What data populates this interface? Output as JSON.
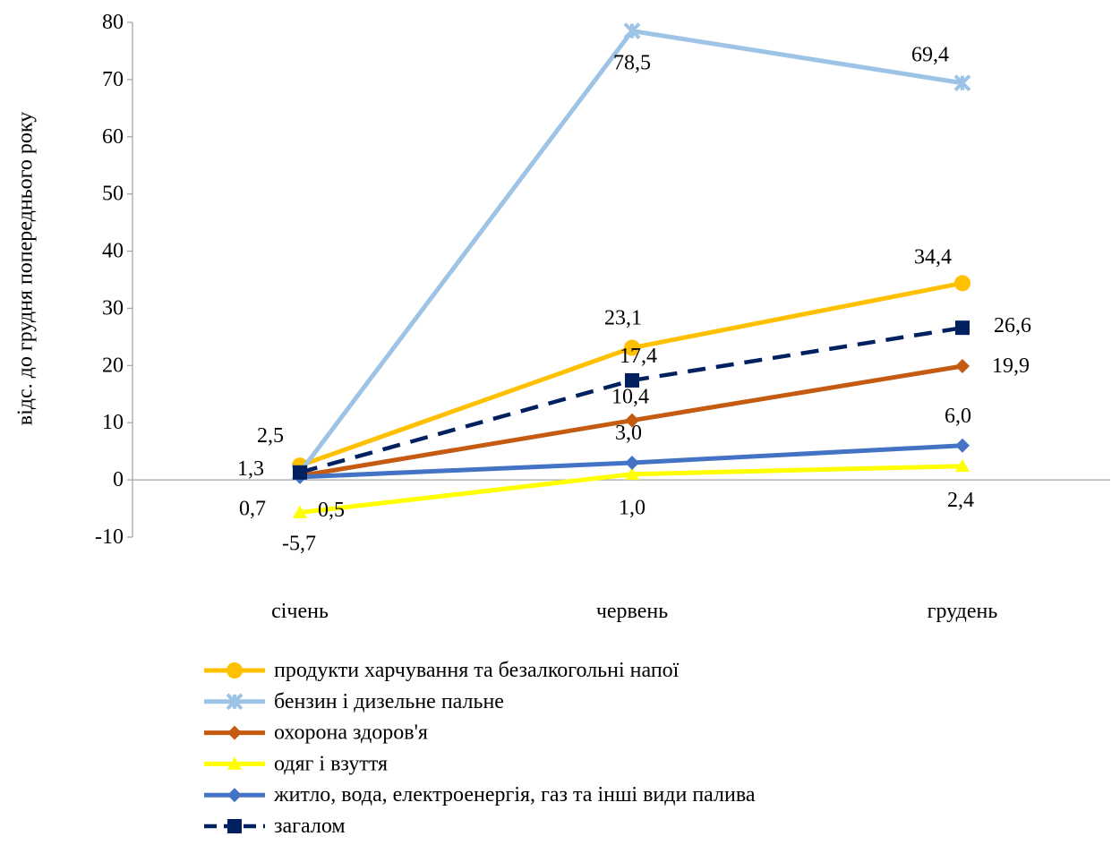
{
  "chart_data": {
    "type": "line",
    "title": "",
    "xlabel": "",
    "ylabel": "відс. до грудня попереднього року",
    "categories": [
      "січень",
      "червень",
      "грудень"
    ],
    "ylim": [
      -10,
      80
    ],
    "yticks": [
      -10,
      0,
      10,
      20,
      30,
      40,
      50,
      60,
      70,
      80
    ],
    "grid": false,
    "legend_position": "bottom",
    "series": [
      {
        "name": "продукти харчування та безалкогольні напої",
        "values": [
          2.5,
          23.1,
          34.4
        ],
        "labels": [
          "2,5",
          "23,1",
          "34,4"
        ],
        "color": "#FFC000",
        "marker": "circle",
        "dash": "solid"
      },
      {
        "name": "бензин і дизельне пальне",
        "values": [
          1.3,
          78.5,
          69.4
        ],
        "labels": [
          "1,3",
          "78,5",
          "69,4"
        ],
        "color": "#9DC3E6",
        "marker": "star",
        "dash": "solid"
      },
      {
        "name": "охорона здоров'я",
        "values": [
          0.7,
          10.4,
          19.9
        ],
        "labels": [
          "0,7",
          "10,4",
          "19,9"
        ],
        "color": "#C55A11",
        "marker": "diamond",
        "dash": "solid"
      },
      {
        "name": "одяг і взуття",
        "values": [
          -5.7,
          1.0,
          2.4
        ],
        "labels": [
          "-5,7",
          "1,0",
          "2,4"
        ],
        "color": "#FFFF00",
        "marker": "triangle",
        "dash": "solid"
      },
      {
        "name": "житло, вода, електроенергія, газ та інші види палива",
        "values": [
          0.5,
          3.0,
          6.0
        ],
        "labels": [
          "0,5",
          "3,0",
          "6,0"
        ],
        "color": "#4472C4",
        "marker": "diamond",
        "dash": "solid"
      },
      {
        "name": "загалом",
        "values": [
          1.3,
          17.4,
          26.6
        ],
        "labels": [
          "",
          "17,4",
          "26,6"
        ],
        "color": "#002060",
        "marker": "square",
        "dash": "dashed"
      }
    ]
  }
}
